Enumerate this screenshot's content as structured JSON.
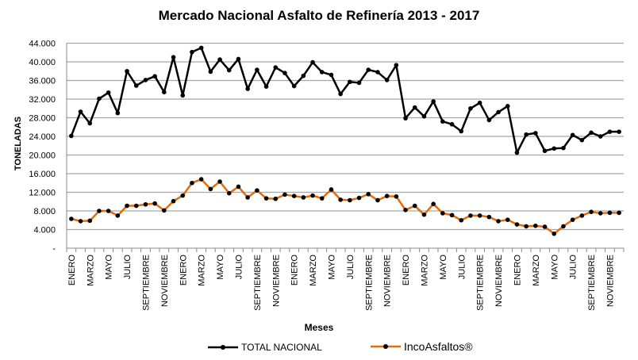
{
  "chart_data": {
    "type": "line",
    "title": "Mercado Nacional Asfalto de Refinería 2013 - 2017",
    "xlabel": "Meses",
    "ylabel": "TONELADAS",
    "ylim": [
      0,
      44000
    ],
    "y_ticks": [
      0,
      4000,
      8000,
      12000,
      16000,
      20000,
      24000,
      28000,
      32000,
      36000,
      40000,
      44000
    ],
    "y_tick_labels": [
      "-",
      "4.000",
      "8.000",
      "12.000",
      "16.000",
      "20.000",
      "24.000",
      "28.000",
      "32.000",
      "36.000",
      "40.000",
      "44.000"
    ],
    "grid": true,
    "legend": "bottom",
    "categories": [
      "ENERO",
      "",
      "MARZO",
      "",
      "MAYO",
      "",
      "JULIO",
      "",
      "SEPTIEMBRE",
      "",
      "NOVIEMBRE",
      "",
      "ENERO",
      "",
      "MARZO",
      "",
      "MAYO",
      "",
      "JULIO",
      "",
      "SEPTIEMBRE",
      "",
      "NOVIEMBRE",
      "",
      "ENERO",
      "",
      "MARZO",
      "",
      "MAYO",
      "",
      "JULIO",
      "",
      "SEPTIEMBRE",
      "",
      "NOVIEMBRE",
      "",
      "ENERO",
      "",
      "MARZO",
      "",
      "MAYO",
      "",
      "JULIO",
      "",
      "SEPTIEMBRE",
      "",
      "NOVIEMBRE",
      "",
      "ENERO",
      "",
      "MARZO",
      "",
      "MAYO",
      "",
      "JULIO",
      "",
      "SEPTIEMBRE",
      "",
      "NOVIEMBRE",
      ""
    ],
    "series": [
      {
        "name": "TOTAL NACIONAL",
        "color": "#000000",
        "values": [
          24100,
          29300,
          26800,
          32100,
          33400,
          29000,
          38000,
          34900,
          36100,
          36900,
          33500,
          41000,
          32800,
          42100,
          43000,
          37900,
          40500,
          38200,
          40600,
          34200,
          38300,
          34700,
          38800,
          37600,
          34800,
          37000,
          39900,
          37800,
          37200,
          33100,
          35700,
          35500,
          38300,
          37800,
          36100,
          39300,
          27900,
          30200,
          28300,
          31500,
          27200,
          26600,
          25100,
          30000,
          31200,
          27500,
          29200,
          30500,
          20500,
          24400,
          24700,
          20900,
          21400,
          21500,
          24300,
          23200,
          24800,
          24000,
          25000,
          25000
        ]
      },
      {
        "name": "IncoAsfaltos®",
        "color": "#E46C0A",
        "values": [
          6300,
          5800,
          5900,
          8000,
          8000,
          7000,
          9100,
          9100,
          9400,
          9600,
          8100,
          10100,
          11300,
          14000,
          14800,
          12700,
          14300,
          11800,
          13200,
          10900,
          12400,
          10700,
          10600,
          11500,
          11200,
          10900,
          11300,
          10700,
          12600,
          10400,
          10300,
          10800,
          11600,
          10300,
          11200,
          11100,
          8200,
          9100,
          7200,
          9500,
          7500,
          7100,
          6000,
          7000,
          7000,
          6700,
          5800,
          6100,
          5100,
          4700,
          4800,
          4600,
          3100,
          4700,
          6100,
          7000,
          7800,
          7500,
          7600,
          7600
        ]
      }
    ]
  }
}
